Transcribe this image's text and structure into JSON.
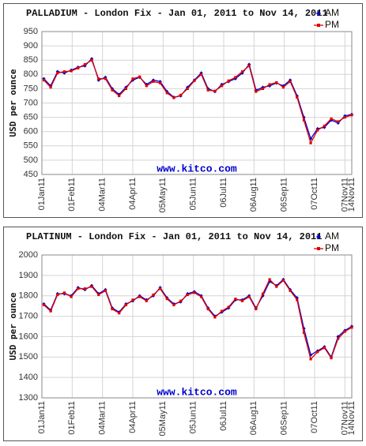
{
  "chart_data": [
    {
      "type": "line",
      "title": "PALLADIUM - London Fix - Jan 01, 2011 to Nov 14, 2011",
      "y_label": "USD per ounce",
      "watermark": "www.kitco.com",
      "x": [
        "2011-01-03",
        "2011-01-10",
        "2011-01-17",
        "2011-01-24",
        "2011-01-31",
        "2011-02-07",
        "2011-02-14",
        "2011-02-21",
        "2011-02-28",
        "2011-03-07",
        "2011-03-14",
        "2011-03-21",
        "2011-03-28",
        "2011-04-04",
        "2011-04-11",
        "2011-04-18",
        "2011-04-25",
        "2011-05-02",
        "2011-05-09",
        "2011-05-16",
        "2011-05-23",
        "2011-05-30",
        "2011-06-06",
        "2011-06-13",
        "2011-06-20",
        "2011-06-27",
        "2011-07-04",
        "2011-07-11",
        "2011-07-18",
        "2011-07-25",
        "2011-08-01",
        "2011-08-08",
        "2011-08-15",
        "2011-08-22",
        "2011-08-29",
        "2011-09-05",
        "2011-09-12",
        "2011-09-19",
        "2011-09-26",
        "2011-10-03",
        "2011-10-10",
        "2011-10-17",
        "2011-10-24",
        "2011-10-31",
        "2011-11-07",
        "2011-11-14"
      ],
      "series": [
        {
          "name": "AM",
          "color": "#0000cc",
          "values": [
            785,
            760,
            810,
            805,
            815,
            825,
            830,
            855,
            780,
            790,
            750,
            730,
            755,
            780,
            790,
            765,
            780,
            775,
            740,
            720,
            725,
            755,
            780,
            805,
            750,
            740,
            765,
            775,
            785,
            805,
            835,
            745,
            755,
            760,
            770,
            760,
            780,
            725,
            650,
            575,
            610,
            615,
            640,
            630,
            655,
            660
          ]
        },
        {
          "name": "PM",
          "color": "#dd0000",
          "values": [
            780,
            755,
            805,
            810,
            812,
            822,
            835,
            850,
            785,
            785,
            745,
            725,
            750,
            785,
            792,
            760,
            775,
            770,
            735,
            718,
            728,
            750,
            778,
            800,
            745,
            742,
            760,
            778,
            790,
            810,
            830,
            740,
            750,
            765,
            772,
            755,
            775,
            720,
            640,
            560,
            605,
            620,
            645,
            635,
            650,
            658
          ]
        }
      ],
      "xlim": [
        "2011-01-01",
        "2011-11-14"
      ],
      "xticks": [
        {
          "value": "2011-01-01",
          "label": "01Jan11"
        },
        {
          "value": "2011-02-01",
          "label": "01Feb11"
        },
        {
          "value": "2011-03-04",
          "label": "04Mar11"
        },
        {
          "value": "2011-04-04",
          "label": "04Apr11"
        },
        {
          "value": "2011-05-05",
          "label": "05May11"
        },
        {
          "value": "2011-06-05",
          "label": "05Jun11"
        },
        {
          "value": "2011-07-06",
          "label": "06Jul11"
        },
        {
          "value": "2011-08-06",
          "label": "06Aug11"
        },
        {
          "value": "2011-09-06",
          "label": "06Sep11"
        },
        {
          "value": "2011-10-07",
          "label": "07Oct11"
        },
        {
          "value": "2011-11-07",
          "label": "07Nov11"
        },
        {
          "value": "2011-11-14",
          "label": "14Nov11"
        }
      ],
      "ylim": [
        450,
        950
      ],
      "yticks": [
        450,
        500,
        550,
        600,
        650,
        700,
        750,
        800,
        850,
        900,
        950
      ],
      "grid": true,
      "legend": "top-right"
    },
    {
      "type": "line",
      "title": "PLATINUM - London Fix - Jan 01, 2011 to Nov 14, 2011",
      "y_label": "USD per ounce",
      "watermark": "www.kitco.com",
      "x": [
        "2011-01-03",
        "2011-01-10",
        "2011-01-17",
        "2011-01-24",
        "2011-01-31",
        "2011-02-07",
        "2011-02-14",
        "2011-02-21",
        "2011-02-28",
        "2011-03-07",
        "2011-03-14",
        "2011-03-21",
        "2011-03-28",
        "2011-04-04",
        "2011-04-11",
        "2011-04-18",
        "2011-04-25",
        "2011-05-02",
        "2011-05-09",
        "2011-05-16",
        "2011-05-23",
        "2011-05-30",
        "2011-06-06",
        "2011-06-13",
        "2011-06-20",
        "2011-06-27",
        "2011-07-04",
        "2011-07-11",
        "2011-07-18",
        "2011-07-25",
        "2011-08-01",
        "2011-08-08",
        "2011-08-15",
        "2011-08-22",
        "2011-08-29",
        "2011-09-05",
        "2011-09-12",
        "2011-09-19",
        "2011-09-26",
        "2011-10-03",
        "2011-10-10",
        "2011-10-17",
        "2011-10-24",
        "2011-10-31",
        "2011-11-07",
        "2011-11-14"
      ],
      "series": [
        {
          "name": "AM",
          "color": "#0000cc",
          "values": [
            1760,
            1730,
            1810,
            1810,
            1800,
            1840,
            1830,
            1850,
            1810,
            1830,
            1740,
            1720,
            1760,
            1775,
            1800,
            1780,
            1800,
            1840,
            1790,
            1760,
            1770,
            1810,
            1820,
            1800,
            1740,
            1700,
            1720,
            1740,
            1780,
            1780,
            1800,
            1740,
            1800,
            1870,
            1850,
            1880,
            1830,
            1790,
            1640,
            1510,
            1530,
            1550,
            1500,
            1600,
            1630,
            1650
          ]
        },
        {
          "name": "PM",
          "color": "#dd0000",
          "values": [
            1755,
            1725,
            1805,
            1815,
            1795,
            1835,
            1835,
            1845,
            1805,
            1825,
            1735,
            1715,
            1755,
            1780,
            1795,
            1775,
            1805,
            1835,
            1785,
            1755,
            1775,
            1805,
            1815,
            1795,
            1735,
            1695,
            1725,
            1745,
            1785,
            1775,
            1795,
            1735,
            1810,
            1880,
            1845,
            1875,
            1825,
            1780,
            1620,
            1490,
            1525,
            1545,
            1495,
            1590,
            1625,
            1645
          ]
        }
      ],
      "xlim": [
        "2011-01-01",
        "2011-11-14"
      ],
      "xticks": [
        {
          "value": "2011-01-01",
          "label": "01Jan11"
        },
        {
          "value": "2011-02-01",
          "label": "01Feb11"
        },
        {
          "value": "2011-03-04",
          "label": "04Mar11"
        },
        {
          "value": "2011-04-04",
          "label": "04Apr11"
        },
        {
          "value": "2011-05-05",
          "label": "05May11"
        },
        {
          "value": "2011-06-05",
          "label": "05Jun11"
        },
        {
          "value": "2011-07-06",
          "label": "06Jul11"
        },
        {
          "value": "2011-08-06",
          "label": "06Aug11"
        },
        {
          "value": "2011-09-06",
          "label": "06Sep11"
        },
        {
          "value": "2011-10-07",
          "label": "07Oct11"
        },
        {
          "value": "2011-11-07",
          "label": "07Nov11"
        },
        {
          "value": "2011-11-14",
          "label": "14Nov11"
        }
      ],
      "ylim": [
        1300,
        2000
      ],
      "yticks": [
        1300,
        1400,
        1500,
        1600,
        1700,
        1800,
        1900,
        2000
      ],
      "grid": true,
      "legend": "top-right"
    }
  ]
}
